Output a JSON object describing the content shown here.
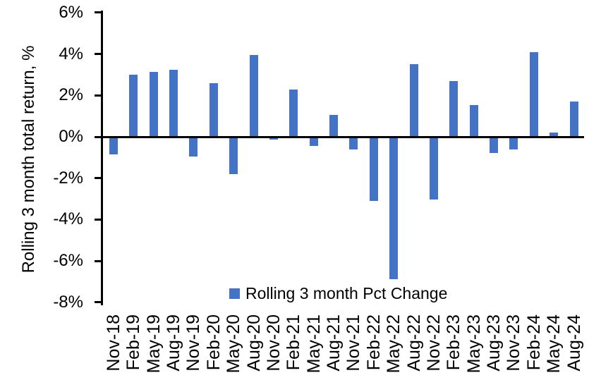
{
  "chart_data": {
    "type": "bar",
    "title": "",
    "xlabel": "",
    "ylabel": "Rolling 3 month total return, %",
    "legend": "Rolling 3 month Pct Change",
    "legend_position": "bottom",
    "grid": false,
    "ylim": [
      -8,
      6
    ],
    "ytick_values": [
      6,
      4,
      2,
      0,
      -2,
      -4,
      -6,
      -8
    ],
    "ytick_labels": [
      "6%",
      "4%",
      "2%",
      "0%",
      "-2%",
      "-4%",
      "-6%",
      "-8%"
    ],
    "categories": [
      "Nov-18",
      "Feb-19",
      "May-19",
      "Aug-19",
      "Nov-19",
      "Feb-20",
      "May-20",
      "Aug-20",
      "Nov-20",
      "Feb-21",
      "May-21",
      "Aug-21",
      "Nov-21",
      "Feb-22",
      "May-22",
      "Aug-22",
      "Nov-22",
      "Feb-23",
      "May-23",
      "Aug-23",
      "Nov-23",
      "Feb-24",
      "May-24",
      "Aug-24"
    ],
    "series": [
      {
        "name": "Rolling 3 month Pct Change",
        "values": [
          -0.85,
          3.0,
          3.15,
          3.25,
          -0.95,
          2.6,
          -1.8,
          3.95,
          -0.15,
          2.3,
          -0.45,
          1.05,
          -0.6,
          -3.1,
          -6.9,
          3.5,
          -3.05,
          2.7,
          1.55,
          -0.8,
          -0.6,
          4.1,
          0.2,
          1.7
        ]
      }
    ],
    "colors": {
      "bar": "#4472C4",
      "axis": "#000000",
      "text": "#000000"
    }
  }
}
